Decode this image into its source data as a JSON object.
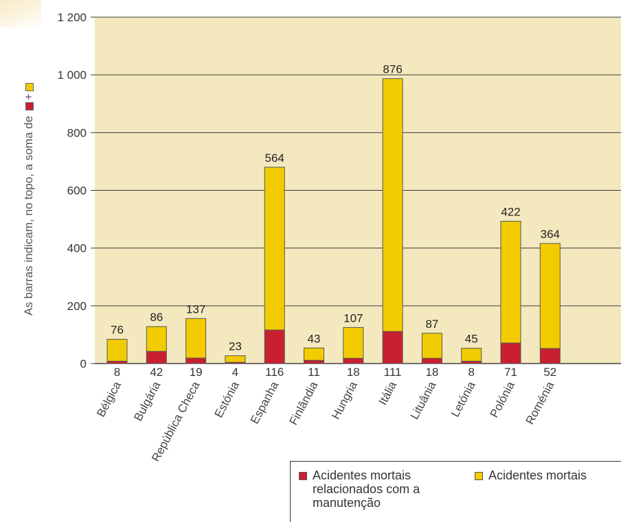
{
  "side_note": {
    "text": "As barras indicam, no topo, a soma de",
    "plus": "+"
  },
  "colors": {
    "plot_bg": "#f4e9be",
    "yellow": "#f2cc00",
    "red": "#c8202f",
    "grid": "#3a3a3a"
  },
  "legend": {
    "red_label": "Acidentes mortais relacionados com a manutenção",
    "yellow_label": "Acidentes mortais"
  },
  "chart_data": {
    "type": "bar",
    "stacked": true,
    "categories": [
      "Bélgica",
      "Bulgária",
      "República Checa",
      "Estónia",
      "Espanha",
      "Finlândia",
      "Hungria",
      "Itália",
      "Lituânia",
      "Letónia",
      "Polónia",
      "Roménia"
    ],
    "series": [
      {
        "name": "Acidentes mortais relacionados com a manutenção",
        "values": [
          8,
          42,
          19,
          4,
          116,
          11,
          18,
          111,
          18,
          8,
          71,
          52
        ]
      },
      {
        "name": "Acidentes mortais",
        "values": [
          76,
          86,
          137,
          23,
          564,
          43,
          107,
          876,
          87,
          45,
          422,
          364
        ]
      }
    ],
    "bottom_labels": [
      "8",
      "42",
      "19",
      "4",
      "116",
      "11",
      "18",
      "111",
      "18",
      "8",
      "71",
      "52"
    ],
    "top_labels": [
      "76",
      "86",
      "137",
      "23",
      "564",
      "43",
      "107",
      "876",
      "87",
      "45",
      "422",
      "364"
    ],
    "yticks": [
      "0",
      "200",
      "400",
      "600",
      "800",
      "1 000",
      "1 200"
    ],
    "ylim": [
      0,
      1200
    ],
    "grid": true,
    "legend_position": "bottom-right"
  }
}
